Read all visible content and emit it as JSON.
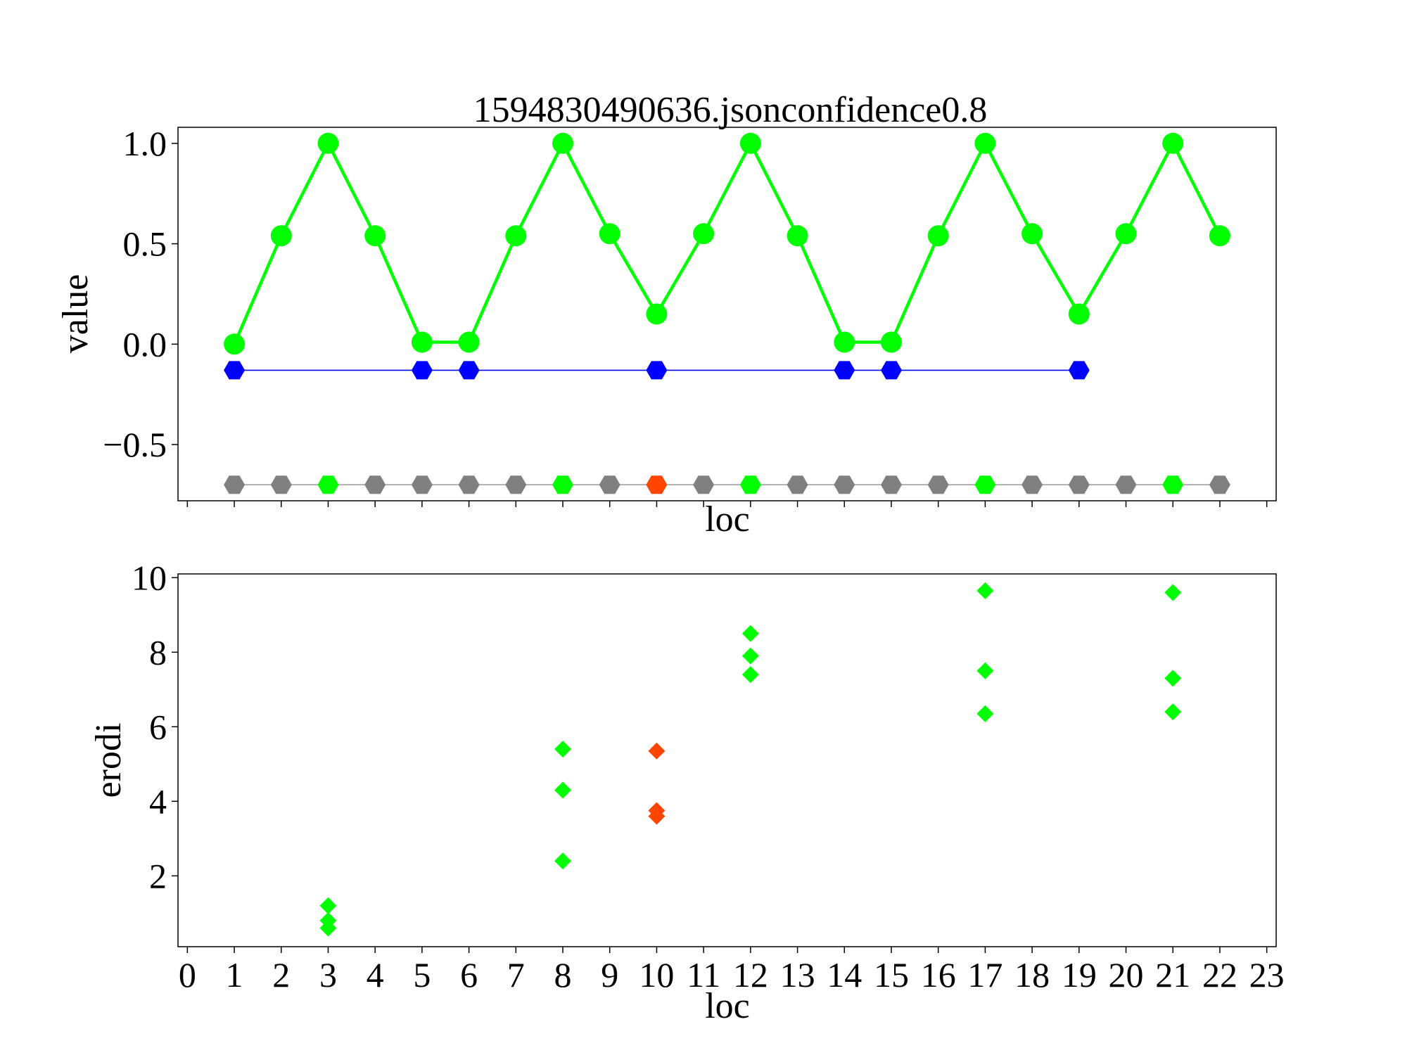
{
  "chart_data": [
    {
      "type": "line",
      "title": "1594830490636.jsonconfidence0.8",
      "xlabel": "loc",
      "ylabel": "value",
      "xlim": [
        -0.2,
        23.2
      ],
      "ylim": [
        -0.78,
        1.08
      ],
      "y_ticks": [
        {
          "value": 1.0,
          "label": "1.0"
        },
        {
          "value": 0.5,
          "label": "0.5"
        },
        {
          "value": 0.0,
          "label": "0.0"
        },
        {
          "value": -0.5,
          "label": "−0.5"
        }
      ],
      "x_tick_labels_visible": false,
      "grid": false,
      "series": [
        {
          "color": "#00ff00",
          "marker": "circle",
          "x": [
            1,
            2,
            3,
            4,
            5,
            6,
            7,
            8,
            9,
            10,
            11,
            12,
            13,
            14,
            15,
            16,
            17,
            18,
            19,
            20,
            21,
            22
          ],
          "y": [
            0.0,
            0.54,
            1.0,
            0.54,
            0.01,
            0.01,
            0.54,
            1.0,
            0.55,
            0.15,
            0.55,
            1.0,
            0.54,
            0.01,
            0.01,
            0.54,
            1.0,
            0.55,
            0.15,
            0.55,
            1.0,
            0.54
          ]
        },
        {
          "color": "#0000ff",
          "marker": "hexagon",
          "x": [
            1,
            5,
            6,
            10,
            14,
            15,
            19
          ],
          "y": [
            -0.13,
            -0.13,
            -0.13,
            -0.13,
            -0.13,
            -0.13,
            -0.13
          ]
        },
        {
          "color": "#808080",
          "line_color": "#a0a0a0",
          "marker": "hexagon",
          "x": [
            1,
            2,
            3,
            4,
            5,
            6,
            7,
            8,
            9,
            10,
            11,
            12,
            13,
            14,
            15,
            16,
            17,
            18,
            19,
            20,
            21,
            22
          ],
          "y": [
            -0.7,
            -0.7,
            -0.7,
            -0.7,
            -0.7,
            -0.7,
            -0.7,
            -0.7,
            -0.7,
            -0.7,
            -0.7,
            -0.7,
            -0.7,
            -0.7,
            -0.7,
            -0.7,
            -0.7,
            -0.7,
            -0.7,
            -0.7,
            -0.7,
            -0.7
          ],
          "highlights": [
            {
              "x": 3,
              "color": "#00ff00"
            },
            {
              "x": 8,
              "color": "#00ff00"
            },
            {
              "x": 10,
              "color": "#ff4500"
            },
            {
              "x": 12,
              "color": "#00ff00"
            },
            {
              "x": 17,
              "color": "#00ff00"
            },
            {
              "x": 21,
              "color": "#00ff00"
            }
          ]
        }
      ]
    },
    {
      "type": "scatter",
      "title": "",
      "xlabel": "loc",
      "ylabel": "erodi",
      "xlim": [
        -0.2,
        23.2
      ],
      "ylim": [
        0.1,
        10.1
      ],
      "x_ticks": [
        0,
        1,
        2,
        3,
        4,
        5,
        6,
        7,
        8,
        9,
        10,
        11,
        12,
        13,
        14,
        15,
        16,
        17,
        18,
        19,
        20,
        21,
        22,
        23
      ],
      "y_ticks": [
        {
          "value": 2,
          "label": "2"
        },
        {
          "value": 4,
          "label": "4"
        },
        {
          "value": 6,
          "label": "6"
        },
        {
          "value": 8,
          "label": "8"
        },
        {
          "value": 10,
          "label": "10"
        }
      ],
      "grid": false,
      "series": [
        {
          "color": "#00ff00",
          "marker": "diamond",
          "points": [
            [
              3,
              1.2
            ],
            [
              3,
              0.8
            ],
            [
              3,
              0.6
            ],
            [
              8,
              5.4
            ],
            [
              8,
              4.3
            ],
            [
              8,
              2.4
            ],
            [
              12,
              8.5
            ],
            [
              12,
              7.9
            ],
            [
              12,
              7.4
            ],
            [
              17,
              9.65
            ],
            [
              17,
              7.5
            ],
            [
              17,
              6.35
            ],
            [
              21,
              9.6
            ],
            [
              21,
              7.3
            ],
            [
              21,
              6.4
            ]
          ]
        },
        {
          "color": "#ff4500",
          "marker": "diamond",
          "points": [
            [
              10,
              5.35
            ],
            [
              10,
              3.75
            ],
            [
              10,
              3.6
            ]
          ]
        }
      ]
    }
  ]
}
